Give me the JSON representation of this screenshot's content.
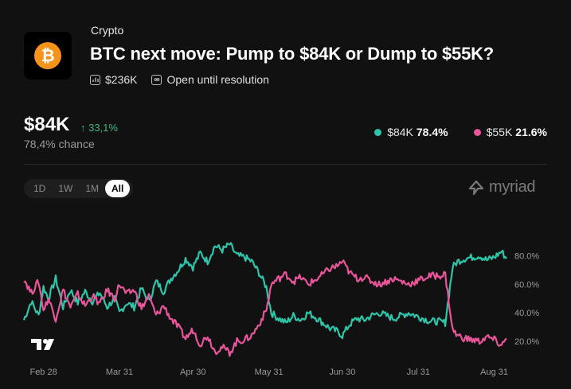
{
  "header": {
    "category": "Crypto",
    "title": "BTC next move: Pump to $84K or Dump to $55K?",
    "volume": "$236K",
    "status": "Open until resolution"
  },
  "summary": {
    "price": "$84K",
    "change": "↑ 33,1%",
    "chance": "78,4% chance"
  },
  "legend": [
    {
      "label": "$84K",
      "value": "78.4%",
      "color": "#2ec4a8"
    },
    {
      "label": "$55K",
      "value": "21.6%",
      "color": "#e8559a"
    }
  ],
  "range_buttons": [
    "1D",
    "1W",
    "1M",
    "All"
  ],
  "active_range": "All",
  "brand": "myriad",
  "chart_data": {
    "type": "line",
    "x_ticks": [
      "Feb 28",
      "Mar 31",
      "Apr 30",
      "May 31",
      "Jun 30",
      "Jul 31",
      "Aug 31"
    ],
    "y_ticks": [
      "80.0%",
      "60.0%",
      "40.0%",
      "20.0%"
    ],
    "ylim": [
      10,
      92
    ],
    "x_range": [
      "Feb 20",
      "Sep 5"
    ],
    "grid": false,
    "series": [
      {
        "name": "$84K",
        "color": "#2ec4a8",
        "points": [
          [
            "Feb 20",
            35
          ],
          [
            "Feb 23",
            48
          ],
          [
            "Feb 26",
            38
          ],
          [
            "Feb 28",
            58
          ],
          [
            "Mar 2",
            50
          ],
          [
            "Mar 5",
            64
          ],
          [
            "Mar 8",
            44
          ],
          [
            "Mar 11",
            56
          ],
          [
            "Mar 14",
            47
          ],
          [
            "Mar 17",
            55
          ],
          [
            "Mar 20",
            48
          ],
          [
            "Mar 23",
            54
          ],
          [
            "Mar 26",
            44
          ],
          [
            "Mar 29",
            50
          ],
          [
            "Mar 31",
            40
          ],
          [
            "Apr 3",
            47
          ],
          [
            "Apr 6",
            44
          ],
          [
            "Apr 9",
            57
          ],
          [
            "Apr 12",
            48
          ],
          [
            "Apr 15",
            62
          ],
          [
            "Apr 18",
            55
          ],
          [
            "Apr 21",
            64
          ],
          [
            "Apr 24",
            70
          ],
          [
            "Apr 27",
            78
          ],
          [
            "Apr 30",
            72
          ],
          [
            "May 3",
            82
          ],
          [
            "May 6",
            76
          ],
          [
            "May 9",
            87
          ],
          [
            "May 12",
            84
          ],
          [
            "May 15",
            88
          ],
          [
            "May 18",
            80
          ],
          [
            "May 21",
            79
          ],
          [
            "May 24",
            76
          ],
          [
            "May 27",
            68
          ],
          [
            "May 30",
            58
          ],
          [
            "Jun 1",
            40
          ],
          [
            "Jun 4",
            36
          ],
          [
            "Jun 7",
            33
          ],
          [
            "Jun 10",
            38
          ],
          [
            "Jun 13",
            35
          ],
          [
            "Jun 16",
            40
          ],
          [
            "Jun 19",
            37
          ],
          [
            "Jun 22",
            33
          ],
          [
            "Jun 25",
            29
          ],
          [
            "Jun 28",
            27
          ],
          [
            "Jun 30",
            24
          ],
          [
            "Jul 3",
            32
          ],
          [
            "Jul 6",
            36
          ],
          [
            "Jul 9",
            35
          ],
          [
            "Jul 12",
            38
          ],
          [
            "Jul 15",
            40
          ],
          [
            "Jul 18",
            38
          ],
          [
            "Jul 21",
            36
          ],
          [
            "Jul 24",
            38
          ],
          [
            "Jul 27",
            40
          ],
          [
            "Jul 30",
            38
          ],
          [
            "Aug 2",
            36
          ],
          [
            "Aug 5",
            34
          ],
          [
            "Aug 8",
            34
          ],
          [
            "Aug 11",
            33
          ],
          [
            "Aug 14",
            72
          ],
          [
            "Aug 16",
            76
          ],
          [
            "Aug 19",
            78
          ],
          [
            "Aug 22",
            79
          ],
          [
            "Aug 25",
            80
          ],
          [
            "Aug 28",
            77
          ],
          [
            "Aug 31",
            79
          ],
          [
            "Sep 3",
            83
          ],
          [
            "Sep 5",
            78
          ]
        ]
      },
      {
        "name": "$55K",
        "color": "#e8559a",
        "points": [
          [
            "Feb 20",
            64
          ],
          [
            "Feb 23",
            54
          ],
          [
            "Feb 26",
            62
          ],
          [
            "Feb 28",
            42
          ],
          [
            "Mar 2",
            50
          ],
          [
            "Mar 5",
            36
          ],
          [
            "Mar 8",
            56
          ],
          [
            "Mar 11",
            44
          ],
          [
            "Mar 14",
            53
          ],
          [
            "Mar 17",
            45
          ],
          [
            "Mar 20",
            52
          ],
          [
            "Mar 23",
            46
          ],
          [
            "Mar 26",
            56
          ],
          [
            "Mar 29",
            50
          ],
          [
            "Mar 31",
            60
          ],
          [
            "Apr 3",
            53
          ],
          [
            "Apr 6",
            56
          ],
          [
            "Apr 9",
            43
          ],
          [
            "Apr 12",
            52
          ],
          [
            "Apr 15",
            38
          ],
          [
            "Apr 18",
            45
          ],
          [
            "Apr 21",
            36
          ],
          [
            "Apr 24",
            30
          ],
          [
            "Apr 27",
            22
          ],
          [
            "Apr 30",
            28
          ],
          [
            "May 3",
            18
          ],
          [
            "May 6",
            24
          ],
          [
            "May 9",
            13
          ],
          [
            "May 12",
            16
          ],
          [
            "May 15",
            12
          ],
          [
            "May 18",
            20
          ],
          [
            "May 21",
            21
          ],
          [
            "May 24",
            24
          ],
          [
            "May 27",
            32
          ],
          [
            "May 30",
            42
          ],
          [
            "Jun 1",
            60
          ],
          [
            "Jun 4",
            64
          ],
          [
            "Jun 7",
            67
          ],
          [
            "Jun 10",
            62
          ],
          [
            "Jun 13",
            65
          ],
          [
            "Jun 16",
            60
          ],
          [
            "Jun 19",
            63
          ],
          [
            "Jun 22",
            67
          ],
          [
            "Jun 25",
            71
          ],
          [
            "Jun 28",
            73
          ],
          [
            "Jun 30",
            76
          ],
          [
            "Jul 3",
            68
          ],
          [
            "Jul 6",
            64
          ],
          [
            "Jul 9",
            65
          ],
          [
            "Jul 12",
            62
          ],
          [
            "Jul 15",
            60
          ],
          [
            "Jul 18",
            62
          ],
          [
            "Jul 21",
            64
          ],
          [
            "Jul 24",
            62
          ],
          [
            "Jul 27",
            60
          ],
          [
            "Jul 30",
            62
          ],
          [
            "Aug 2",
            64
          ],
          [
            "Aug 5",
            66
          ],
          [
            "Aug 8",
            66
          ],
          [
            "Aug 11",
            67
          ],
          [
            "Aug 14",
            28
          ],
          [
            "Aug 16",
            24
          ],
          [
            "Aug 19",
            22
          ],
          [
            "Aug 22",
            21
          ],
          [
            "Aug 25",
            20
          ],
          [
            "Aug 28",
            23
          ],
          [
            "Aug 31",
            21
          ],
          [
            "Sep 3",
            17
          ],
          [
            "Sep 5",
            22
          ]
        ]
      }
    ]
  }
}
